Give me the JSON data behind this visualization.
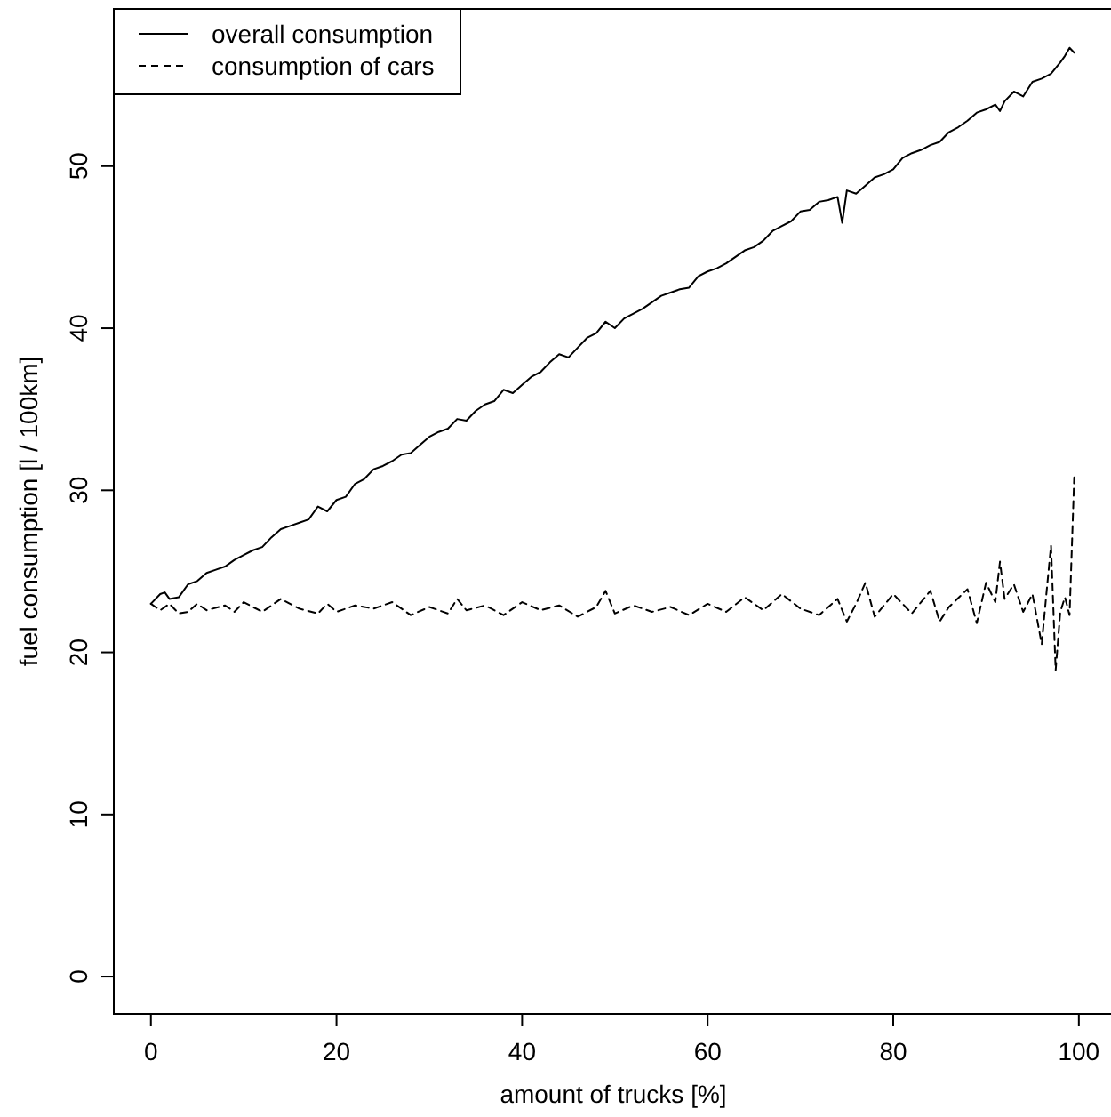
{
  "chart_data": {
    "type": "line",
    "xlabel": "amount of trucks [%]",
    "ylabel": "fuel consumption [l / 100km]",
    "xlim": [
      -4,
      104
    ],
    "ylim": [
      -2.3,
      59.7
    ],
    "xticks": [
      0,
      20,
      40,
      60,
      80,
      100
    ],
    "yticks": [
      0,
      10,
      20,
      30,
      40,
      50
    ],
    "grid": false,
    "legend": "top left",
    "marker": "none",
    "series": [
      {
        "name": "overall consumption",
        "color": "#000000",
        "line_style": "solid",
        "x": [
          0,
          1,
          1.5,
          2,
          3,
          4,
          5,
          6,
          7,
          8,
          9,
          10,
          11,
          12,
          13,
          14,
          15,
          16,
          17,
          18,
          19,
          20,
          21,
          22,
          23,
          24,
          25,
          26,
          27,
          28,
          29,
          30,
          31,
          32,
          33,
          34,
          35,
          36,
          37,
          38,
          39,
          40,
          41,
          42,
          43,
          44,
          45,
          46,
          47,
          48,
          49,
          50,
          51,
          52,
          53,
          54,
          55,
          56,
          57,
          58,
          59,
          60,
          61,
          62,
          63,
          64,
          65,
          66,
          67,
          68,
          69,
          70,
          71,
          72,
          73,
          74,
          74.5,
          75,
          76,
          77,
          78,
          79,
          80,
          81,
          82,
          83,
          84,
          85,
          86,
          87,
          88,
          89,
          90,
          91,
          91.5,
          92,
          93,
          94,
          95,
          96,
          97,
          98,
          98.5,
          99,
          99.5
        ],
        "values": [
          23,
          23.6,
          23.7,
          23.3,
          23.4,
          24.2,
          24.4,
          24.9,
          25.1,
          25.3,
          25.7,
          26.0,
          26.3,
          26.5,
          27.1,
          27.6,
          27.8,
          28.0,
          28.2,
          29.0,
          28.7,
          29.4,
          29.6,
          30.4,
          30.7,
          31.3,
          31.5,
          31.8,
          32.2,
          32.3,
          32.8,
          33.3,
          33.6,
          33.8,
          34.4,
          34.3,
          34.9,
          35.3,
          35.5,
          36.2,
          36.0,
          36.5,
          37.0,
          37.3,
          37.9,
          38.4,
          38.2,
          38.8,
          39.4,
          39.7,
          40.4,
          40.0,
          40.6,
          40.9,
          41.2,
          41.6,
          42.0,
          42.2,
          42.4,
          42.5,
          43.2,
          43.5,
          43.7,
          44.0,
          44.4,
          44.8,
          45.0,
          45.4,
          46.0,
          46.3,
          46.6,
          47.2,
          47.3,
          47.8,
          47.9,
          48.1,
          46.5,
          48.5,
          48.3,
          48.8,
          49.3,
          49.5,
          49.8,
          50.5,
          50.8,
          51.0,
          51.3,
          51.5,
          52.1,
          52.4,
          52.8,
          53.3,
          53.5,
          53.8,
          53.4,
          54.0,
          54.6,
          54.3,
          55.2,
          55.4,
          55.7,
          56.4,
          56.8,
          57.3,
          57.0
        ]
      },
      {
        "name": "consumption of cars",
        "color": "#000000",
        "line_style": "dashed",
        "x": [
          0,
          1,
          2,
          3,
          4,
          5,
          6,
          8,
          9,
          10,
          12,
          14,
          16,
          18,
          19,
          20,
          22,
          24,
          26,
          28,
          30,
          32,
          33,
          34,
          36,
          38,
          40,
          42,
          44,
          46,
          48,
          49,
          50,
          52,
          54,
          56,
          58,
          60,
          62,
          64,
          66,
          68,
          70,
          72,
          74,
          75,
          76,
          77,
          78,
          80,
          82,
          84,
          85,
          86,
          88,
          89,
          90,
          91,
          91.5,
          92,
          93,
          94,
          95,
          96,
          96.5,
          97,
          97.5,
          98,
          98.5,
          99,
          99.5
        ],
        "values": [
          23,
          22.6,
          23.0,
          22.4,
          22.5,
          23.0,
          22.6,
          22.9,
          22.5,
          23.1,
          22.5,
          23.3,
          22.7,
          22.4,
          23.0,
          22.5,
          22.9,
          22.7,
          23.1,
          22.3,
          22.8,
          22.4,
          23.3,
          22.6,
          22.9,
          22.3,
          23.1,
          22.6,
          22.9,
          22.2,
          22.8,
          23.8,
          22.4,
          22.9,
          22.5,
          22.8,
          22.3,
          23.0,
          22.5,
          23.4,
          22.6,
          23.6,
          22.7,
          22.3,
          23.3,
          21.9,
          23.0,
          24.3,
          22.2,
          23.6,
          22.4,
          23.8,
          21.9,
          22.8,
          23.9,
          21.8,
          24.3,
          23.1,
          25.6,
          23.3,
          24.2,
          22.5,
          23.6,
          20.5,
          23.6,
          26.6,
          18.9,
          22.5,
          23.4,
          22.3,
          30.8
        ]
      }
    ]
  }
}
